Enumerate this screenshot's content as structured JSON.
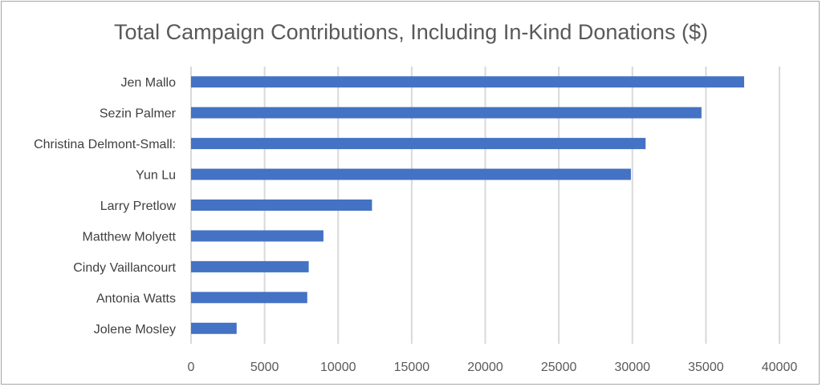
{
  "chart_data": {
    "type": "bar",
    "orientation": "horizontal",
    "title": "Total Campaign Contributions, Including In-Kind Donations ($)",
    "xlabel": "",
    "ylabel": "",
    "categories": [
      "Jen Mallo",
      "Sezin Palmer",
      "Christina Delmont-Small:",
      "Yun Lu",
      "Larry Pretlow",
      "Matthew Molyett",
      "Cindy Vaillancourt",
      "Antonia Watts",
      "Jolene Mosley"
    ],
    "values": [
      37600,
      34700,
      30900,
      29900,
      12300,
      9000,
      8000,
      7900,
      3100
    ],
    "xlim": [
      0,
      40000
    ],
    "xticks": [
      "0",
      "5000",
      "10000",
      "15000",
      "20000",
      "25000",
      "30000",
      "35000",
      "40000"
    ],
    "grid": true,
    "legend": "none",
    "colors": {
      "bar": "#4472c4",
      "grid": "#d9d9d9",
      "text": "#595959"
    }
  }
}
